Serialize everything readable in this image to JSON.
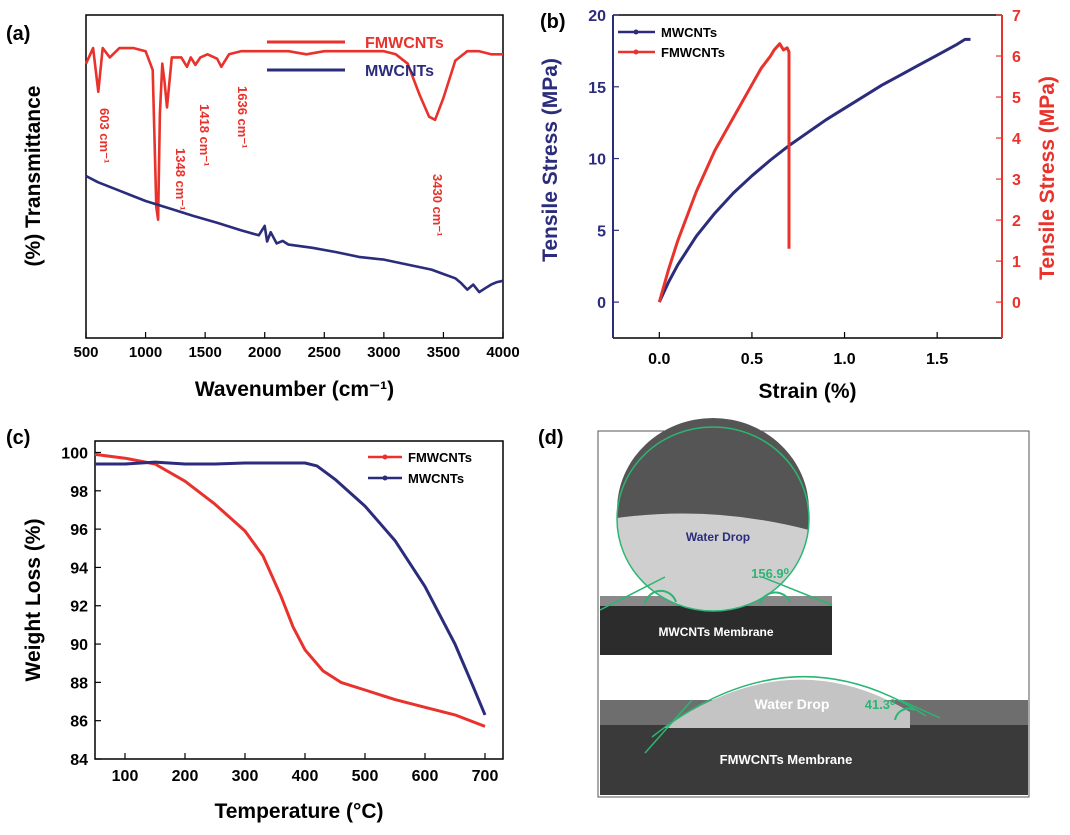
{
  "colors": {
    "red": "#e8322b",
    "navy": "#2b2c7c",
    "green": "#2bb673",
    "axis": "#000000"
  },
  "panels": {
    "a": {
      "tag": "(a)"
    },
    "b": {
      "tag": "(b)"
    },
    "c": {
      "tag": "(c)"
    },
    "d": {
      "tag": "(d)",
      "top_drop_label": "Water Drop",
      "top_angle": "156.9⁰",
      "top_membrane": "MWCNTs Membrane",
      "bottom_drop_label": "Water Drop",
      "bottom_angle": "41.3⁰",
      "bottom_membrane": "FMWCNTs Membrane"
    }
  },
  "chart_data": [
    {
      "id": "a",
      "type": "line",
      "xlabel": "Wavenumber (cm⁻¹)",
      "ylabel": "(%) Transmittance",
      "xlim": [
        500,
        4000
      ],
      "xticks": [
        500,
        1000,
        1500,
        2000,
        2500,
        3000,
        3500,
        4000
      ],
      "y_ticks_shown": false,
      "legend": {
        "position": "top-right"
      },
      "series": [
        {
          "name": "FMWCNTs",
          "color": "#e8322b",
          "x": [
            500,
            560,
            603,
            640,
            700,
            780,
            900,
            1000,
            1060,
            1090,
            1105,
            1120,
            1140,
            1160,
            1180,
            1220,
            1300,
            1348,
            1380,
            1418,
            1460,
            1520,
            1600,
            1636,
            1700,
            1800,
            2000,
            2200,
            2350,
            2500,
            2800,
            3000,
            3100,
            3200,
            3300,
            3380,
            3430,
            3500,
            3600,
            3700,
            3800,
            3900,
            4000
          ],
          "y": [
            93.0,
            95.5,
            88.5,
            95.5,
            94.0,
            95.5,
            95.5,
            95.0,
            92.0,
            70.0,
            68.0,
            85.0,
            93.0,
            90.0,
            86.0,
            94.0,
            94.0,
            92.5,
            94.0,
            92.8,
            94.0,
            94.5,
            93.8,
            92.5,
            94.5,
            95.0,
            95.0,
            95.0,
            94.5,
            95.0,
            95.0,
            95.0,
            94.5,
            93.0,
            88.0,
            84.5,
            84.0,
            87.5,
            93.5,
            95.0,
            95.0,
            94.5,
            94.5
          ],
          "annotations": [
            {
              "text": "603 cm⁻¹",
              "x": 603
            },
            {
              "text": "1348 cm⁻¹",
              "x": 1348
            },
            {
              "text": "1418 cm⁻¹",
              "x": 1418
            },
            {
              "text": "1636 cm⁻¹",
              "x": 1636
            },
            {
              "text": "3430 cm⁻¹",
              "x": 3430
            }
          ]
        },
        {
          "name": "MWCNTs",
          "color": "#2b2c7c",
          "x": [
            500,
            600,
            800,
            1000,
            1200,
            1400,
            1600,
            1800,
            1950,
            2000,
            2020,
            2050,
            2100,
            2150,
            2200,
            2400,
            2600,
            2800,
            3000,
            3200,
            3400,
            3500,
            3600,
            3650,
            3700,
            3750,
            3800,
            3850,
            3900,
            3950,
            4000
          ],
          "y": [
            75.0,
            74.0,
            72.5,
            71.0,
            69.8,
            68.6,
            67.5,
            66.3,
            65.5,
            67.0,
            64.5,
            66.0,
            64.2,
            64.6,
            64.0,
            63.5,
            62.8,
            62.0,
            61.6,
            60.8,
            60.0,
            59.3,
            58.6,
            57.8,
            56.8,
            57.6,
            56.4,
            57.0,
            57.6,
            58.0,
            58.2
          ]
        }
      ]
    },
    {
      "id": "b",
      "type": "line",
      "xlabel": "Strain (%)",
      "ylabel": "Tensile Stress (MPa)",
      "ylabel_right": "Tensile Stress (MPa)",
      "xlim": [
        -0.25,
        1.85
      ],
      "ylim": [
        -2.5,
        20
      ],
      "ylim_right": [
        -0.875,
        7
      ],
      "xticks": [
        0.0,
        0.5,
        1.0,
        1.5
      ],
      "yticks": [
        0,
        5,
        10,
        15,
        20
      ],
      "yticks_right": [
        0,
        1,
        2,
        3,
        4,
        5,
        6,
        7
      ],
      "legend": {
        "position": "top-left"
      },
      "series": [
        {
          "name": "MWCNTs",
          "axis": "left",
          "color": "#2b2c7c",
          "x": [
            0,
            0.05,
            0.1,
            0.2,
            0.3,
            0.4,
            0.5,
            0.6,
            0.7,
            0.8,
            0.9,
            1.0,
            1.1,
            1.2,
            1.3,
            1.4,
            1.5,
            1.6,
            1.65,
            1.68
          ],
          "y": [
            0,
            1.4,
            2.6,
            4.6,
            6.2,
            7.6,
            8.8,
            9.9,
            10.9,
            11.8,
            12.7,
            13.5,
            14.3,
            15.1,
            15.8,
            16.5,
            17.2,
            17.9,
            18.3,
            18.3
          ]
        },
        {
          "name": "FMWCNTs",
          "axis": "right",
          "color": "#e8322b",
          "x": [
            0,
            0.05,
            0.1,
            0.2,
            0.3,
            0.4,
            0.5,
            0.55,
            0.6,
            0.62,
            0.65,
            0.67,
            0.69,
            0.7,
            0.7,
            0.7
          ],
          "y": [
            0,
            0.8,
            1.5,
            2.7,
            3.7,
            4.5,
            5.3,
            5.7,
            6.0,
            6.15,
            6.3,
            6.15,
            6.2,
            6.1,
            3.4,
            1.3
          ]
        }
      ]
    },
    {
      "id": "c",
      "type": "line",
      "xlabel": "Temperature (°C)",
      "ylabel": "Weight Loss (%)",
      "xlim": [
        50,
        730
      ],
      "ylim": [
        84,
        100.6
      ],
      "xticks": [
        100,
        200,
        300,
        400,
        500,
        600,
        700
      ],
      "yticks": [
        84,
        86,
        88,
        90,
        92,
        94,
        96,
        98,
        100
      ],
      "legend": {
        "position": "top-right"
      },
      "series": [
        {
          "name": "FMWCNTs",
          "color": "#e8322b",
          "x": [
            50,
            100,
            150,
            200,
            250,
            300,
            330,
            360,
            380,
            400,
            430,
            460,
            500,
            550,
            600,
            650,
            700
          ],
          "y": [
            99.9,
            99.7,
            99.4,
            98.5,
            97.3,
            95.9,
            94.6,
            92.5,
            90.9,
            89.7,
            88.6,
            88.0,
            87.6,
            87.1,
            86.7,
            86.3,
            85.7
          ]
        },
        {
          "name": "MWCNTs",
          "color": "#2b2c7c",
          "x": [
            50,
            100,
            150,
            200,
            250,
            300,
            350,
            400,
            420,
            450,
            500,
            550,
            600,
            650,
            680,
            700
          ],
          "y": [
            99.4,
            99.4,
            99.5,
            99.4,
            99.4,
            99.45,
            99.45,
            99.45,
            99.3,
            98.6,
            97.2,
            95.4,
            93.0,
            90.0,
            87.8,
            86.3
          ]
        }
      ]
    }
  ]
}
